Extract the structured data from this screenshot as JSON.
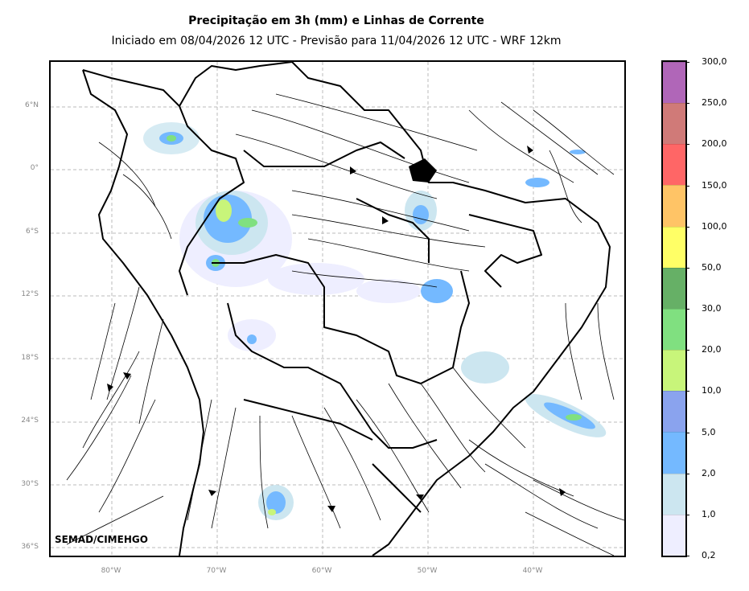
{
  "header": {
    "title": "Precipitação em 3h (mm) e Linhas de Corrente",
    "subtitle": "Iniciado em 08/04/2026 12 UTC - Previsão para 11/04/2026 12 UTC - WRF 12km"
  },
  "credit": "SEMAD/CIMEHGO",
  "axes": {
    "lat_labels": [
      "6°N",
      "0°",
      "6°S",
      "12°S",
      "18°S",
      "24°S",
      "30°S",
      "36°S"
    ],
    "lon_labels": [
      "80°W",
      "70°W",
      "60°W",
      "50°W",
      "40°W"
    ]
  },
  "colorbar": {
    "labels": [
      "0,2",
      "1,0",
      "2,0",
      "5,0",
      "10,0",
      "20,0",
      "30,0",
      "50,0",
      "100,0",
      "150,0",
      "200,0",
      "250,0",
      "300,0"
    ],
    "colors": [
      "#eeeeff",
      "#cce6f0",
      "#74b9ff",
      "#8aa3ee",
      "#c8f57a",
      "#80e080",
      "#66b066",
      "#ffff66",
      "#ffc466",
      "#ff6666",
      "#d07a78",
      "#b066b8"
    ]
  }
}
